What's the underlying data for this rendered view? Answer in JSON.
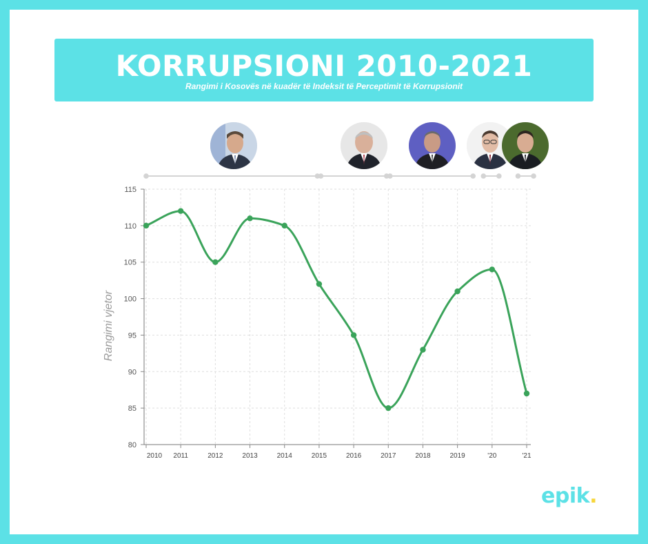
{
  "header": {
    "title": "KORRUPSIONI 2010-2021",
    "subtitle": "Rangimi i Kosovës në kuadër të Indeksit të Perceptimit të Korrupsionit"
  },
  "brand": {
    "name": "epik",
    "dot": ".",
    "color": "#5ce1e6",
    "dot_color": "#f7d63a"
  },
  "chart_data": {
    "type": "line",
    "title": "KORRUPSIONI 2010-2021",
    "subtitle": "Rangimi i Kosovës në kuadër të Indeksit të Perceptimit të Korrupsionit",
    "xlabel": "",
    "ylabel": "Rangimi vjetor",
    "x": [
      2010,
      2011,
      2012,
      2013,
      2014,
      2015,
      2016,
      2017,
      2018,
      2019,
      2020,
      2021
    ],
    "x_tick_labels": [
      "2010",
      "2011",
      "2012",
      "2013",
      "2014",
      "2015",
      "2016",
      "2017",
      "2018",
      "2019",
      "'20",
      "'21"
    ],
    "series": [
      {
        "values": [
          110,
          112,
          105,
          111,
          110,
          102,
          95,
          85,
          93,
          101,
          104,
          87
        ],
        "color": "#3aa35a"
      }
    ],
    "ylim": [
      80,
      115
    ],
    "y_ticks": [
      80,
      85,
      90,
      95,
      100,
      105,
      110,
      115
    ],
    "grid": true,
    "legend": "none",
    "curve": "smooth",
    "term_timeline": [
      {
        "start": 2010,
        "end": 2014.95,
        "portrait": "leader-2010-2014"
      },
      {
        "start": 2015.05,
        "end": 2016.95,
        "portrait": "leader-2015-2017"
      },
      {
        "start": 2017.05,
        "end": 2019.45,
        "portrait": "leader-2017-2019"
      },
      {
        "start": 2019.75,
        "end": 2020.2,
        "portrait": "leader-2020-a"
      },
      {
        "start": 2020.75,
        "end": 2021.2,
        "portrait": "leader-2020-b"
      }
    ]
  }
}
